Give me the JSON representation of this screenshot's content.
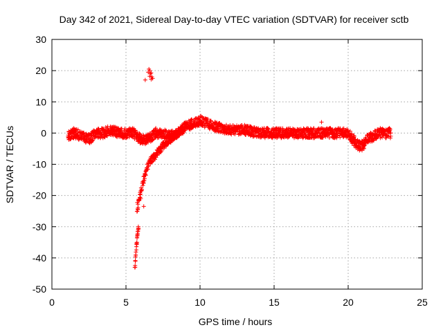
{
  "chart_data": {
    "type": "scatter",
    "title": "Day 342 of 2021, Sidereal Day-to-day VTEC variation (SDTVAR) for receiver sctb",
    "xlabel": "GPS time / hours",
    "ylabel": "SDTVAR / TECUs",
    "xlim": [
      0,
      25
    ],
    "ylim": [
      -50,
      30
    ],
    "xticks": [
      0,
      5,
      10,
      15,
      20,
      25
    ],
    "yticks": [
      -50,
      -40,
      -30,
      -20,
      -10,
      0,
      10,
      20,
      30
    ],
    "grid": true,
    "marker": "+",
    "color": "#ff0000",
    "trend_main": {
      "x": [
        1.1,
        1.5,
        2.0,
        2.5,
        3.0,
        3.5,
        4.0,
        4.5,
        5.0,
        5.5,
        6.0,
        6.5,
        7.0,
        7.5,
        8.0,
        8.5,
        9.0,
        9.5,
        10.0,
        10.5,
        11.0,
        12.0,
        13.0,
        14.0,
        15.0,
        16.0,
        17.0,
        18.0,
        19.0,
        20.0,
        20.3,
        20.7,
        21.0,
        21.3,
        21.7,
        22.0,
        22.5,
        22.9
      ],
      "y": [
        -1,
        0,
        -1,
        -2,
        0,
        0,
        1,
        0,
        0,
        0,
        -2,
        -2,
        0,
        0,
        -1,
        0,
        2,
        3,
        4,
        3,
        2,
        1,
        1,
        0,
        0,
        0,
        0,
        0,
        0,
        0,
        -2,
        -4,
        -4,
        -2,
        -1,
        0,
        0,
        0
      ]
    },
    "trend_recovery": {
      "x": [
        5.75,
        6.0,
        6.3,
        6.6,
        7.0,
        7.5,
        8.0,
        8.5,
        9.0
      ],
      "y": [
        -24,
        -19,
        -13,
        -9,
        -7,
        -4,
        -2,
        0,
        2
      ]
    },
    "trend_drop": {
      "x": [
        5.6,
        5.65,
        5.7,
        5.75,
        5.8,
        5.85
      ],
      "y": [
        -43,
        -40,
        -37,
        -34,
        -32,
        -30
      ]
    },
    "outliers": {
      "x": [
        6.3,
        6.5,
        6.55,
        6.6,
        6.65,
        6.7,
        6.75,
        6.8,
        6.6,
        6.7
      ],
      "y": [
        17,
        19.5,
        20.5,
        20,
        19,
        19.3,
        18,
        17.5,
        18.2,
        17.2
      ]
    },
    "isolated_points": {
      "x": [
        6.2,
        5.8,
        6.0,
        18.2,
        19.0
      ],
      "y": [
        -23.5,
        -24.5,
        -21,
        3.5,
        -1.5
      ]
    }
  }
}
